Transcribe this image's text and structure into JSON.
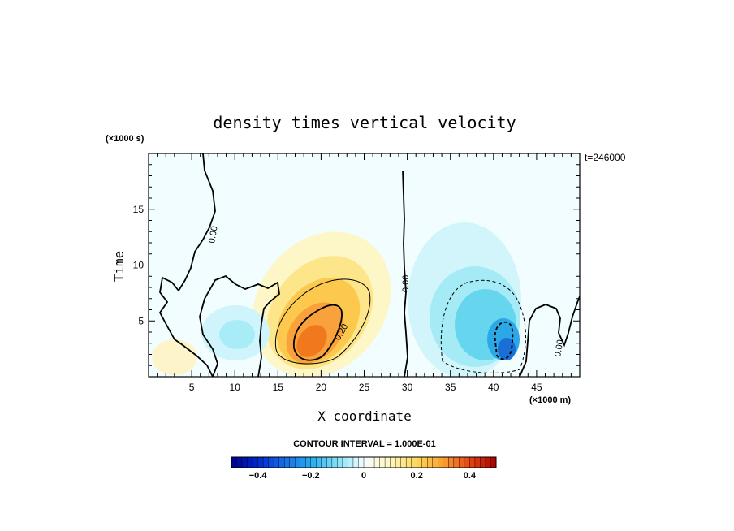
{
  "chart_data": {
    "type": "heatmap",
    "title": "density times vertical velocity",
    "xlabel": "X coordinate",
    "ylabel": "Time",
    "x_unit": "(×1000 m)",
    "y_unit": "(×1000 s)",
    "xlim": [
      0,
      50
    ],
    "ylim": [
      0,
      20
    ],
    "x_ticks": [
      5,
      10,
      15,
      20,
      25,
      30,
      35,
      40,
      45
    ],
    "y_ticks": [
      5,
      10,
      15
    ],
    "time_stamp": "t=246000",
    "contour_interval": "CONTOUR INTERVAL = 1.000E-01",
    "contour_labels": [
      "0.00",
      "0.00",
      "0.20",
      "0.00"
    ],
    "colorbar": {
      "range": [
        -0.5,
        0.5
      ],
      "tick_values": [
        -0.4,
        -0.2,
        0,
        0.2,
        0.4
      ],
      "tick_labels": [
        "−0.4",
        "−0.2",
        "0",
        "0.2",
        "0.4"
      ]
    },
    "features": [
      {
        "kind": "positive maximum",
        "x": 20,
        "t": 3.5,
        "value": 0.35
      },
      {
        "kind": "negative minimum",
        "x": 41,
        "t": 3,
        "value": -0.25
      },
      {
        "kind": "weak negative",
        "x": 10,
        "t": 4,
        "value": -0.08
      }
    ]
  }
}
